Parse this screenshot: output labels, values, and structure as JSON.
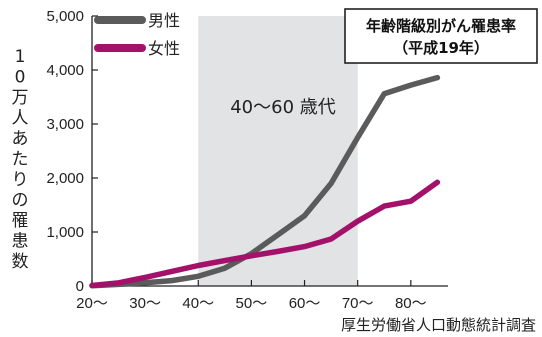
{
  "chart_data": {
    "type": "line",
    "title": "年齢階級別がん罹患率",
    "subtitle": "（平成19年）",
    "ylabel": "10万人あたりの罹患数",
    "x_tick_labels": [
      "20～",
      "30～",
      "40～",
      "50～",
      "60～",
      "70～",
      "80～"
    ],
    "x": [
      20,
      25,
      30,
      35,
      40,
      45,
      50,
      55,
      60,
      65,
      70,
      75,
      80,
      85
    ],
    "xlim": [
      20,
      87
    ],
    "ylim": [
      0,
      5000
    ],
    "y_ticks": [
      0,
      1000,
      2000,
      3000,
      4000,
      5000
    ],
    "y_tick_labels": [
      "0",
      "1,000",
      "2,000",
      "3,000",
      "4,000",
      "5,000"
    ],
    "grid": false,
    "legend_position": "top-left",
    "highlight_band": {
      "x_start": 40,
      "x_end": 70,
      "label": "40～60 歳代",
      "color": "#e2e3e5"
    },
    "series": [
      {
        "name": "男性",
        "color": "#5b5b5b",
        "values": [
          5,
          30,
          60,
          100,
          180,
          330,
          600,
          950,
          1300,
          1900,
          2750,
          3560,
          3720,
          3860
        ]
      },
      {
        "name": "女性",
        "color": "#a3116b",
        "values": [
          10,
          60,
          160,
          270,
          380,
          470,
          560,
          640,
          730,
          870,
          1200,
          1480,
          1570,
          1920
        ]
      }
    ],
    "source": "厚生労働省人口動態統計調査"
  }
}
